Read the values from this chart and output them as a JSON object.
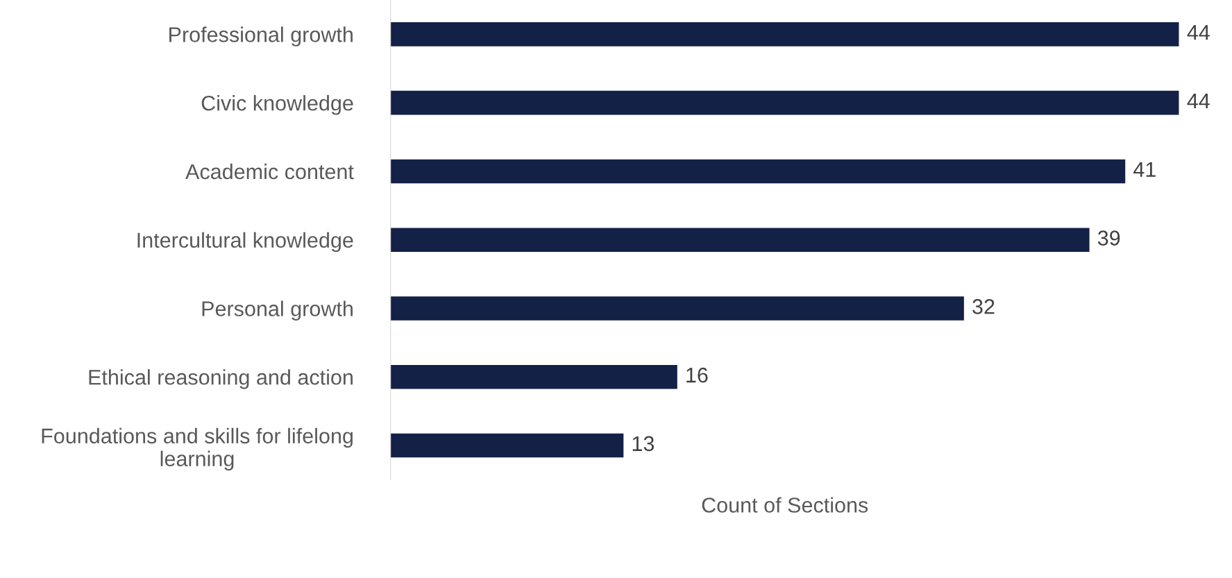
{
  "chart_data": {
    "type": "bar",
    "orientation": "horizontal",
    "xlabel": "Count of Sections",
    "categories": [
      "Professional growth",
      "Civic knowledge",
      "Academic content",
      "Intercultural knowledge",
      "Personal growth",
      "Ethical reasoning and action",
      "Foundations and skills for lifelong learning"
    ],
    "values": [
      44,
      44,
      41,
      39,
      32,
      16,
      13
    ],
    "color": "#142147",
    "data_labels": true,
    "grid": false,
    "legend": false
  }
}
